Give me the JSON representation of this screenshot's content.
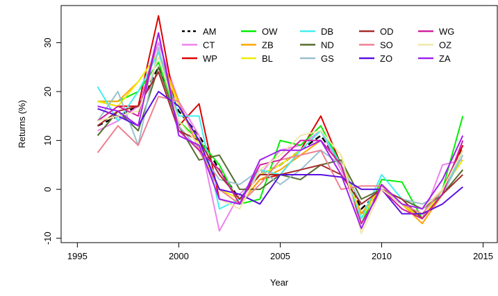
{
  "chart_data": {
    "type": "line",
    "x_label": "Year",
    "y_label": "Returns (%)",
    "x": [
      1996,
      1997,
      1998,
      1999,
      2000,
      2001,
      2002,
      2003,
      2004,
      2005,
      2006,
      2007,
      2008,
      2009,
      2010,
      2011,
      2012,
      2013,
      2014
    ],
    "xlim": [
      1994.2,
      2015.7
    ],
    "xticks": [
      1995,
      2000,
      2005,
      2010,
      2015
    ],
    "ylim": [
      -10.9,
      37.6
    ],
    "yticks": [
      -10,
      0,
      10,
      20,
      30
    ],
    "series": [
      {
        "name": "AM",
        "color": "#000000",
        "dashed": true,
        "values": [
          13,
          15,
          17,
          25,
          16,
          11,
          4,
          -2,
          3,
          5,
          8,
          11,
          5,
          -4,
          0,
          -3,
          -6,
          -1,
          9
        ]
      },
      {
        "name": "CT",
        "color": "#ee82ee",
        "values": [
          12,
          14,
          17,
          30,
          18,
          11,
          -8.5,
          -1,
          3,
          8,
          9,
          12,
          4,
          -5,
          0,
          -4,
          -6,
          5,
          6
        ]
      },
      {
        "name": "WP",
        "color": "#dd0000",
        "values": [
          18,
          17,
          17,
          35.5,
          13,
          17.5,
          -2,
          -3,
          2,
          3,
          8,
          15,
          5,
          -5,
          0,
          -3,
          -6,
          0,
          9
        ]
      },
      {
        "name": "OW",
        "color": "#00ee00",
        "values": [
          18,
          18,
          20,
          26,
          14,
          10,
          5,
          -3,
          -2,
          10,
          9,
          13,
          5,
          -7,
          2,
          1.5,
          -6,
          0,
          15
        ]
      },
      {
        "name": "ZB",
        "color": "#ffa500",
        "values": [
          18,
          18,
          22,
          28,
          18,
          8,
          0,
          -3,
          2,
          4,
          7,
          10,
          5,
          -5,
          1,
          -3,
          -7,
          -1,
          7
        ]
      },
      {
        "name": "BL",
        "color": "#eeee00",
        "values": [
          18,
          17,
          22,
          28,
          17,
          9,
          0,
          -2,
          3,
          5,
          8,
          12,
          7,
          -6,
          1,
          -3,
          -6,
          0,
          6
        ]
      },
      {
        "name": "DB",
        "color": "#44eeee",
        "values": [
          21,
          14,
          20,
          28,
          15,
          15,
          -4,
          -2,
          4,
          3,
          8,
          12,
          5,
          -6,
          3,
          -2,
          -4,
          -1,
          8
        ]
      },
      {
        "name": "ND",
        "color": "#556b2f",
        "values": [
          11,
          16,
          12,
          25,
          13,
          6,
          7,
          0,
          0,
          3,
          2,
          5,
          6,
          -2,
          0,
          -2,
          -4,
          -1,
          4
        ]
      },
      {
        "name": "GS",
        "color": "#9ac0cd",
        "values": [
          14,
          20,
          9,
          29,
          13,
          8,
          2,
          1,
          4,
          1,
          4,
          8,
          5,
          -3,
          0,
          -2,
          -3,
          -1,
          7
        ]
      },
      {
        "name": "OD",
        "color": "#a52a2a",
        "values": [
          13,
          16,
          17,
          24,
          12,
          10,
          3,
          -2,
          3,
          3,
          4,
          5,
          3,
          -3,
          0,
          -2,
          -6,
          -1,
          3
        ]
      },
      {
        "name": "SO",
        "color": "#f08090",
        "values": [
          7.5,
          13,
          9,
          19,
          18,
          8,
          0,
          -3,
          1,
          6,
          7,
          8,
          0,
          0.7,
          0.7,
          -3,
          -5,
          0,
          8
        ]
      },
      {
        "name": "ZO",
        "color": "#5a10e0",
        "values": [
          16.5,
          15,
          13,
          20,
          17,
          10,
          0,
          -1,
          -3,
          3,
          3,
          3,
          2.5,
          0,
          0,
          -5,
          -5,
          -3,
          0.5
        ]
      },
      {
        "name": "WG",
        "color": "#d020a0",
        "values": [
          14,
          17,
          15,
          32,
          12,
          8,
          4,
          -3,
          5,
          6,
          10,
          10,
          5,
          -7,
          0,
          -4,
          -6,
          -1,
          10
        ]
      },
      {
        "name": "OZ",
        "color": "#eee8aa",
        "values": [
          14,
          15,
          16,
          27,
          14,
          9,
          -2,
          -4,
          4,
          7,
          11,
          12,
          7,
          -9,
          0,
          -3,
          -4,
          0,
          8
        ]
      },
      {
        "name": "ZA",
        "color": "#a020f0",
        "values": [
          17,
          16,
          13,
          32,
          11,
          9,
          -2,
          -3,
          6,
          8,
          8,
          10,
          3,
          -8,
          1,
          -3,
          -4,
          2,
          11
        ]
      }
    ]
  }
}
